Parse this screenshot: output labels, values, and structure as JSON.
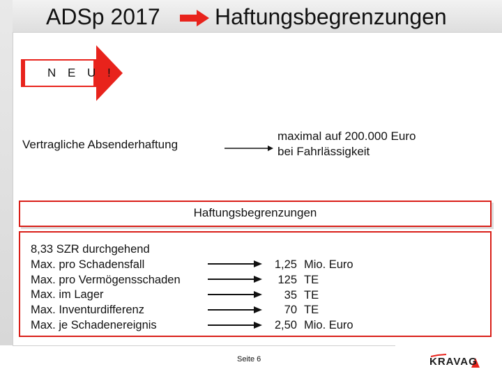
{
  "header": {
    "title_left": "ADSp 2017",
    "title_right": "Haftungsbegrenzungen",
    "arrow_icon": "arrow-right-icon",
    "arrow_color": "#e8231c"
  },
  "badge": {
    "text": "N E U !",
    "arrow_color": "#e8231c"
  },
  "liability": {
    "left": "Vertragliche Absenderhaftung",
    "right_line1": "maximal auf 200.000 Euro",
    "right_line2": "bei Fahrlässigkeit"
  },
  "section": {
    "title": "Haftungsbegrenzungen",
    "border_color": "#d91e18"
  },
  "items": [
    {
      "label": "8,33 SZR durchgehend",
      "amount": "",
      "unit": ""
    },
    {
      "label": "Max. pro Schadensfall",
      "amount": "1,25",
      "unit": "Mio. Euro"
    },
    {
      "label": "Max. pro Vermögensschaden",
      "amount": "125",
      "unit": "TE"
    },
    {
      "label": "Max. im Lager",
      "amount": "35",
      "unit": "TE"
    },
    {
      "label": "Max. Inventurdifferenz",
      "amount": "70",
      "unit": "TE"
    },
    {
      "label": "Max. je Schadenereignis",
      "amount": "2,50",
      "unit": "Mio. Euro"
    }
  ],
  "footer": {
    "page": "Seite 6",
    "logo_text": "KRAVAG"
  }
}
